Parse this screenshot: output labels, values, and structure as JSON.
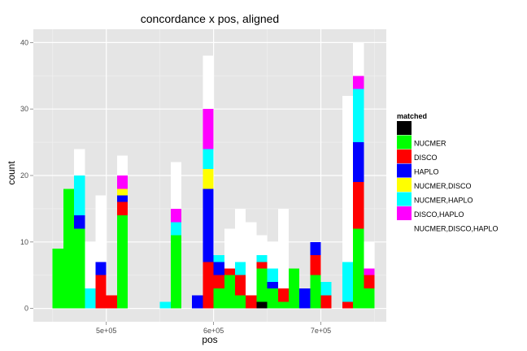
{
  "chart_data": {
    "type": "bar",
    "stacked": true,
    "title": "concordance x pos, aligned",
    "xlabel": "pos",
    "ylabel": "count",
    "xlim": [
      432000,
      761000
    ],
    "ylim": [
      -2,
      42
    ],
    "bin_width": 10000,
    "x_ticks": [
      {
        "value": 500000,
        "label": "5e+05"
      },
      {
        "value": 600000,
        "label": "6e+05"
      },
      {
        "value": 700000,
        "label": "7e+05"
      }
    ],
    "y_ticks": [
      {
        "value": 0,
        "label": "0"
      },
      {
        "value": 10,
        "label": "10"
      },
      {
        "value": 20,
        "label": "20"
      },
      {
        "value": 30,
        "label": "30"
      },
      {
        "value": 40,
        "label": "40"
      }
    ],
    "grid": true,
    "background": "#e5e5e5",
    "legend": {
      "title": "matched",
      "position": "right"
    },
    "series": [
      {
        "name": "",
        "color": "#000000"
      },
      {
        "name": "NUCMER",
        "color": "#00ff00"
      },
      {
        "name": "DISCO",
        "color": "#ff0000"
      },
      {
        "name": "HAPLO",
        "color": "#0000ff"
      },
      {
        "name": "NUCMER,DISCO",
        "color": "#ffff00"
      },
      {
        "name": "NUCMER,HAPLO",
        "color": "#00ffff"
      },
      {
        "name": "DISCO,HAPLO",
        "color": "#ff00ff"
      },
      {
        "name": "NUCMER,DISCO,HAPLO",
        "color": "#ffffff"
      }
    ],
    "x": [
      455000,
      465000,
      475000,
      485000,
      495000,
      505000,
      515000,
      525000,
      555000,
      565000,
      585000,
      595000,
      605000,
      615000,
      625000,
      635000,
      645000,
      655000,
      665000,
      675000,
      685000,
      695000,
      705000,
      715000,
      725000,
      735000,
      745000
    ],
    "bins": [
      [
        0,
        9,
        0,
        0,
        0,
        0,
        0,
        0
      ],
      [
        0,
        18,
        0,
        0,
        0,
        0,
        0,
        0
      ],
      [
        0,
        12,
        0,
        2,
        0,
        6,
        0,
        4
      ],
      [
        0,
        0,
        0,
        0,
        0,
        3,
        0,
        7
      ],
      [
        0,
        0,
        5,
        2,
        0,
        0,
        0,
        10
      ],
      [
        0,
        0,
        2,
        0,
        0,
        0,
        0,
        0
      ],
      [
        0,
        14,
        2,
        1,
        1,
        0,
        2,
        3
      ],
      [
        0,
        0,
        0,
        0,
        0,
        0,
        0,
        0
      ],
      [
        0,
        0,
        0,
        0,
        0,
        1,
        0,
        0
      ],
      [
        0,
        11,
        0,
        0,
        0,
        2,
        2,
        7
      ],
      [
        0,
        0,
        0,
        2,
        0,
        0,
        0,
        0
      ],
      [
        0,
        0,
        7,
        11,
        3,
        3,
        6,
        8
      ],
      [
        0,
        3,
        2,
        2,
        0,
        1,
        0,
        0
      ],
      [
        0,
        5,
        1,
        0,
        0,
        0,
        0,
        6
      ],
      [
        0,
        2,
        3,
        0,
        0,
        2,
        0,
        8
      ],
      [
        0,
        0,
        2,
        0,
        0,
        0,
        0,
        11
      ],
      [
        1,
        5,
        1,
        0,
        0,
        1,
        0,
        3
      ],
      [
        0,
        3,
        0,
        1,
        0,
        2,
        0,
        4
      ],
      [
        0,
        1,
        2,
        0,
        0,
        0,
        0,
        12
      ],
      [
        0,
        6,
        0,
        0,
        0,
        0,
        0,
        0
      ],
      [
        0,
        0,
        0,
        3,
        0,
        0,
        0,
        0
      ],
      [
        0,
        5,
        3,
        2,
        0,
        0,
        0,
        0
      ],
      [
        0,
        0,
        2,
        0,
        0,
        2,
        0,
        0
      ],
      [
        0,
        0,
        0,
        0,
        0,
        0,
        0,
        0
      ],
      [
        0,
        0,
        1,
        0,
        0,
        6,
        0,
        25
      ],
      [
        0,
        12,
        7,
        6,
        0,
        8,
        2,
        5
      ],
      [
        0,
        3,
        2,
        0,
        0,
        0,
        1,
        4
      ]
    ]
  }
}
